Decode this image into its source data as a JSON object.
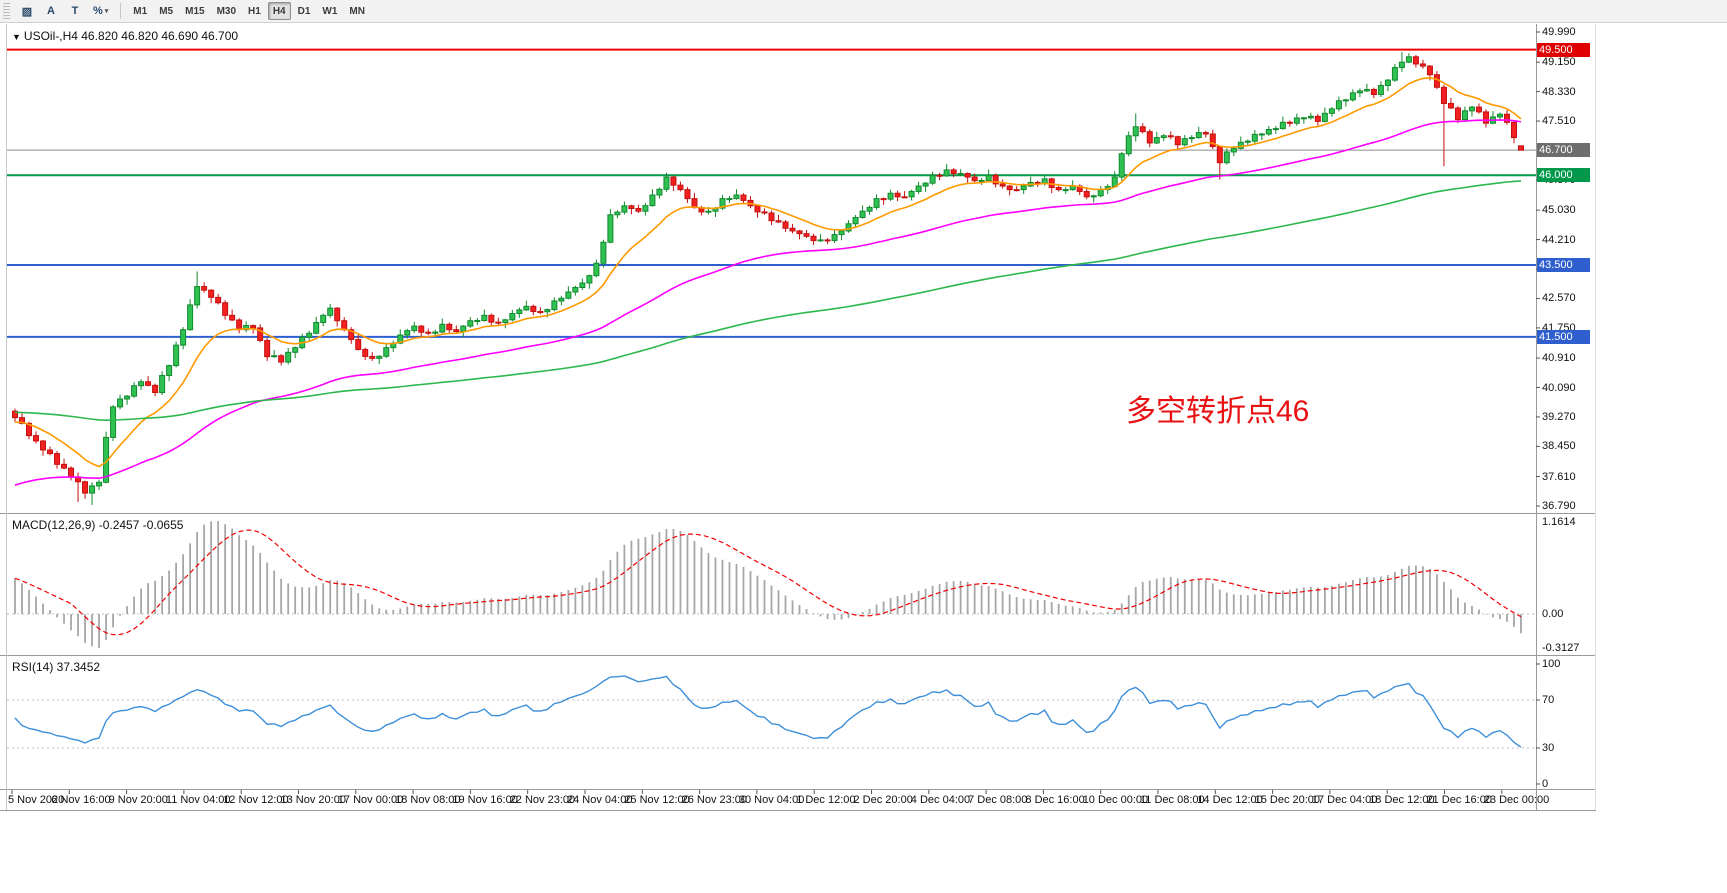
{
  "toolbar": {
    "tools": [
      {
        "name": "chart-properties-tool",
        "glyph": "▨"
      },
      {
        "name": "cursor-tool",
        "glyph": "A"
      },
      {
        "name": "text-tool",
        "glyph": "T"
      },
      {
        "name": "scale-tool",
        "glyph": "%",
        "dropdown": true
      }
    ],
    "timeframes": [
      "M1",
      "M5",
      "M15",
      "M30",
      "H1",
      "H4",
      "D1",
      "W1",
      "MN"
    ],
    "selected": "H4"
  },
  "chart": {
    "symbol_line": "USOil-,H4 46.820 46.820 46.690 46.700",
    "macd_line": "MACD(12,26,9) -0.2457 -0.0655",
    "rsi_line": "RSI(14) 37.3452"
  },
  "annotation": {
    "text": "多空转折点46",
    "color": "#e81010"
  },
  "chart_data": {
    "type": "candlestick",
    "symbol": "USOil",
    "timeframe": "H4",
    "current_bar": {
      "open": 46.82,
      "high": 46.82,
      "low": 46.69,
      "close": 46.7
    },
    "y_range": [
      36.79,
      49.99
    ],
    "price_labels": [
      "49.990",
      "49.150",
      "48.330",
      "47.510",
      "45.870",
      "45.030",
      "44.210",
      "43.390",
      "42.570",
      "41.750",
      "40.910",
      "40.090",
      "39.270",
      "38.450",
      "37.610",
      "36.790"
    ],
    "x_labels": [
      "5 Nov 2020",
      "6 Nov 16:00",
      "9 Nov 20:00",
      "11 Nov 04:00",
      "12 Nov 12:00",
      "13 Nov 20:00",
      "17 Nov 00:00",
      "18 Nov 08:00",
      "19 Nov 16:00",
      "22 Nov 23:00",
      "24 Nov 04:00",
      "25 Nov 12:00",
      "26 Nov 23:00",
      "30 Nov 04:00",
      "1 Dec 12:00",
      "2 Dec 20:00",
      "4 Dec 04:00",
      "7 Dec 08:00",
      "8 Dec 16:00",
      "10 Dec 00:00",
      "11 Dec 08:00",
      "14 Dec 12:00",
      "15 Dec 20:00",
      "17 Dec 04:00",
      "18 Dec 12:00",
      "21 Dec 16:00",
      "23 Dec 00:00"
    ],
    "hlines": [
      {
        "price": 49.5,
        "label": "49.500",
        "line_color": "#f00000",
        "badge_color": "#e00000",
        "width": 2
      },
      {
        "price": 46.7,
        "label": "46.700",
        "line_color": "#8c8c8c",
        "badge_color": "#6d6d6d",
        "width": 1
      },
      {
        "price": 46.0,
        "label": "46.000",
        "line_color": "#00984a",
        "badge_color": "#00984a",
        "width": 2
      },
      {
        "price": 43.5,
        "label": "43.500",
        "line_color": "#2f5fce",
        "badge_color": "#2f5fce",
        "width": 2
      },
      {
        "price": 41.5,
        "label": "41.500",
        "line_color": "#2f5fce",
        "badge_color": "#2f5fce",
        "width": 2
      }
    ],
    "colors": {
      "bull": "#118a2d",
      "bull_fill": "#2fc152",
      "bear": "#c40f0f",
      "bear_fill": "#f22020",
      "macd_bar": "#a6a6a6",
      "macd_signal": "#f00000",
      "rsi_line": "#3d8fd9",
      "level_line": "#c0c0c0"
    },
    "candles": {
      "count": 216,
      "anchors": [
        [
          0,
          39.25
        ],
        [
          2,
          38.75
        ],
        [
          4,
          38.35
        ],
        [
          6,
          37.95
        ],
        [
          8,
          37.6
        ],
        [
          10,
          37.15
        ],
        [
          12,
          37.45
        ],
        [
          13,
          38.7
        ],
        [
          14,
          39.55
        ],
        [
          16,
          39.85
        ],
        [
          18,
          40.25
        ],
        [
          20,
          39.95
        ],
        [
          22,
          40.7
        ],
        [
          24,
          41.7
        ],
        [
          26,
          42.9
        ],
        [
          28,
          42.6
        ],
        [
          30,
          42.1
        ],
        [
          32,
          41.7
        ],
        [
          34,
          41.75
        ],
        [
          36,
          40.95
        ],
        [
          38,
          40.8
        ],
        [
          40,
          41.2
        ],
        [
          42,
          41.6
        ],
        [
          44,
          42.1
        ],
        [
          45,
          42.3
        ],
        [
          47,
          41.7
        ],
        [
          49,
          41.15
        ],
        [
          51,
          40.9
        ],
        [
          53,
          41.2
        ],
        [
          55,
          41.55
        ],
        [
          57,
          41.8
        ],
        [
          59,
          41.6
        ],
        [
          61,
          41.85
        ],
        [
          63,
          41.65
        ],
        [
          65,
          41.95
        ],
        [
          67,
          42.1
        ],
        [
          69,
          41.9
        ],
        [
          71,
          42.15
        ],
        [
          73,
          42.35
        ],
        [
          75,
          42.2
        ],
        [
          77,
          42.5
        ],
        [
          79,
          42.75
        ],
        [
          81,
          43.0
        ],
        [
          83,
          43.55
        ],
        [
          85,
          44.9
        ],
        [
          87,
          45.15
        ],
        [
          89,
          45.0
        ],
        [
          91,
          45.45
        ],
        [
          93,
          45.95
        ],
        [
          95,
          45.6
        ],
        [
          97,
          45.1
        ],
        [
          99,
          45.0
        ],
        [
          101,
          45.35
        ],
        [
          103,
          45.45
        ],
        [
          105,
          45.15
        ],
        [
          107,
          44.95
        ],
        [
          109,
          44.7
        ],
        [
          111,
          44.45
        ],
        [
          113,
          44.3
        ],
        [
          115,
          44.2
        ],
        [
          117,
          44.35
        ],
        [
          119,
          44.65
        ],
        [
          121,
          45.0
        ],
        [
          123,
          45.35
        ],
        [
          125,
          45.5
        ],
        [
          127,
          45.4
        ],
        [
          129,
          45.7
        ],
        [
          131,
          46.0
        ],
        [
          133,
          46.15
        ],
        [
          135,
          46.05
        ],
        [
          137,
          45.85
        ],
        [
          139,
          46.0
        ],
        [
          141,
          45.7
        ],
        [
          143,
          45.6
        ],
        [
          145,
          45.8
        ],
        [
          147,
          45.9
        ],
        [
          149,
          45.6
        ],
        [
          151,
          45.7
        ],
        [
          153,
          45.4
        ],
        [
          155,
          45.6
        ],
        [
          157,
          45.95
        ],
        [
          158,
          46.6
        ],
        [
          159,
          47.1
        ],
        [
          160,
          47.35
        ],
        [
          162,
          46.9
        ],
        [
          164,
          47.1
        ],
        [
          166,
          46.85
        ],
        [
          168,
          47.05
        ],
        [
          170,
          47.15
        ],
        [
          172,
          46.35
        ],
        [
          174,
          46.75
        ],
        [
          176,
          46.95
        ],
        [
          178,
          47.15
        ],
        [
          180,
          47.3
        ],
        [
          182,
          47.45
        ],
        [
          184,
          47.6
        ],
        [
          186,
          47.5
        ],
        [
          188,
          47.85
        ],
        [
          190,
          48.1
        ],
        [
          192,
          48.35
        ],
        [
          194,
          48.25
        ],
        [
          196,
          48.65
        ],
        [
          198,
          49.15
        ],
        [
          199,
          49.3
        ],
        [
          200,
          49.1
        ],
        [
          202,
          48.8
        ],
        [
          204,
          48.0
        ],
        [
          206,
          47.55
        ],
        [
          208,
          47.9
        ],
        [
          210,
          47.45
        ],
        [
          212,
          47.7
        ],
        [
          214,
          47.05
        ],
        [
          215,
          46.7
        ]
      ],
      "wiggle": [
        0.0,
        0.09,
        -0.07,
        0.05,
        -0.09,
        0.1,
        -0.05,
        0.07
      ],
      "wicks": [
        0.07,
        0.16,
        0.05,
        0.12,
        0.03,
        0.1
      ],
      "overrides": {
        "9": {
          "low": 36.9
        },
        "11": {
          "low": 36.82
        },
        "26": {
          "high": 43.32
        },
        "160": {
          "high": 47.72
        },
        "172": {
          "low": 45.88
        },
        "198": {
          "high": 49.43
        },
        "199": {
          "high": 49.4
        },
        "204": {
          "low": 46.25
        },
        "215": {
          "open": 46.82,
          "high": 46.82,
          "low": 46.69,
          "close": 46.7
        }
      }
    },
    "moving_averages": [
      {
        "name": "ma-fast",
        "period": 12,
        "seed": 39.1,
        "color": "#ff9a00"
      },
      {
        "name": "ma-mid",
        "period": 55,
        "seed": 37.3,
        "color": "#ff00ff"
      },
      {
        "name": "ma-slow",
        "period": 150,
        "seed": 39.4,
        "color": "#2db84d"
      }
    ],
    "macd": {
      "label": "MACD(12,26,9)",
      "value_1": "-0.2457",
      "value_2": "-0.0655",
      "fast": 12,
      "slow": 26,
      "signal": 9,
      "seed_fast": 39.45,
      "seed_slow": 39.0,
      "scale_top": "1.1614",
      "scale_zero": "0.00",
      "scale_bottom": "-0.3127"
    },
    "rsi": {
      "label": "RSI(14)",
      "value": "37.3452",
      "period": 14,
      "levels": [
        70,
        30
      ],
      "scale_labels": [
        "100",
        "70",
        "30",
        "0"
      ]
    }
  }
}
